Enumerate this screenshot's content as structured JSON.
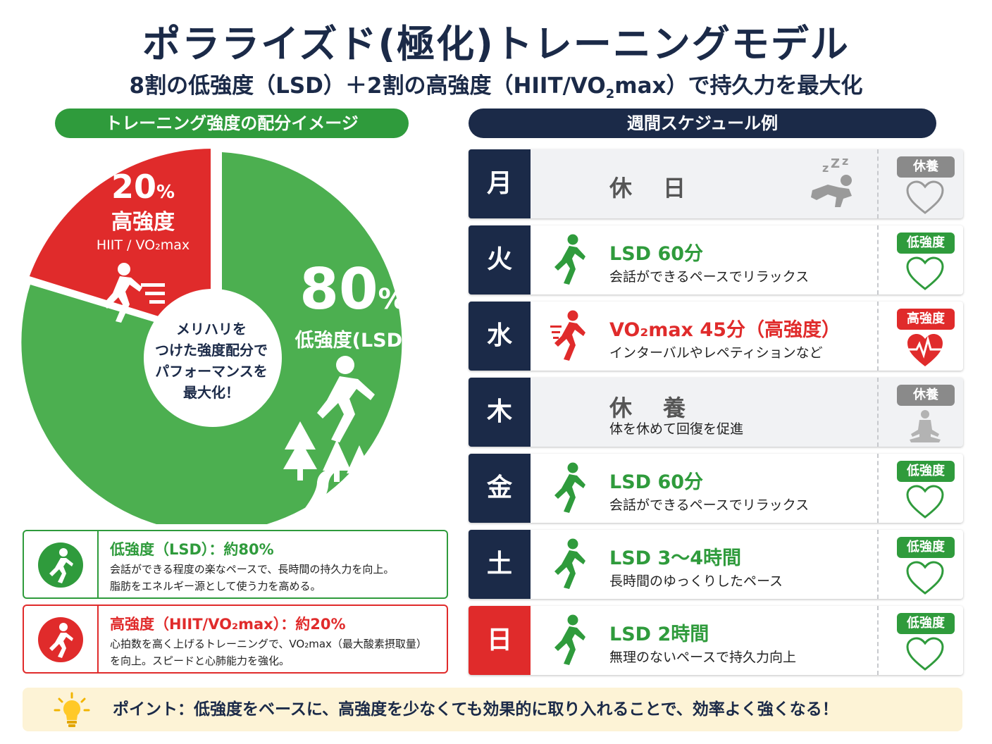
{
  "header": {
    "title": "ポラライズド(極化)トレーニングモデル",
    "subtitle_pre": "8割の低強度（LSD）＋2割の高強度（HIIT/VO",
    "subtitle_sub": "2",
    "subtitle_post": "max）で持久力を最大化"
  },
  "pie_section": {
    "heading": "トレーニング強度の配分イメージ",
    "high": {
      "percent_num": "20",
      "percent_sign": "%",
      "label": "高強度",
      "detail": "HIIT / VO₂max",
      "value": 20,
      "color": "#e02b2b"
    },
    "low": {
      "percent_num": "80",
      "percent_sign": "%",
      "label": "低強度(LSD)",
      "value": 80,
      "color": "#4caf50"
    },
    "center": [
      "メリハリを",
      "つけた強度配分で",
      "パフォーマンスを",
      "最大化！"
    ]
  },
  "legend": [
    {
      "title": "低強度（LSD）：約80%",
      "lines": [
        "会話ができる程度の楽なペースで、長時間の持久力を向上。",
        "脂肪をエネルギー源として使う力を高める。"
      ]
    },
    {
      "title": "高強度（HIIT/VO₂max）：約20%",
      "lines": [
        "心拍数を高く上げるトレーニングで、VO₂max（最大酸素摂取量）",
        "を向上。スピードと心肺能力を強化。"
      ]
    }
  ],
  "schedule": {
    "heading": "週間スケジュール例",
    "rows": [
      {
        "day": "月",
        "main": "休　日",
        "sub": "",
        "badge": "休養",
        "type": "rest"
      },
      {
        "day": "火",
        "main": "LSD 60分",
        "sub": "会話ができるペースでリラックス",
        "badge": "低強度",
        "type": "low"
      },
      {
        "day": "水",
        "main": "VO₂max 45分（高強度）",
        "sub": "インターバルやレペティションなど",
        "badge": "高強度",
        "type": "high"
      },
      {
        "day": "木",
        "main": "休　養",
        "sub": "体を休めて回復を促進",
        "badge": "休養",
        "type": "rest2"
      },
      {
        "day": "金",
        "main": "LSD 60分",
        "sub": "会話ができるペースでリラックス",
        "badge": "低強度",
        "type": "low"
      },
      {
        "day": "土",
        "main": "LSD 3〜4時間",
        "sub": "長時間のゆっくりしたペース",
        "badge": "低強度",
        "type": "low"
      },
      {
        "day": "日",
        "main": "LSD 2時間",
        "sub": "無理のないペースで持久力向上",
        "badge": "低強度",
        "type": "low",
        "sunday": true
      }
    ]
  },
  "point": {
    "text": "ポイント：低強度をベースに、高強度を少なくても効果的に取り入れることで、効率よく強くなる！"
  },
  "colors": {
    "navy": "#1b2a48",
    "green": "#2f9b3c",
    "pie_green": "#4caf50",
    "red": "#e02b2b",
    "gray": "#8a8a8a"
  },
  "icons": [
    "runner-icon",
    "heart-icon",
    "heartbeat-icon",
    "sleeping-icon",
    "meditation-icon",
    "tree-icon",
    "lightbulb-icon"
  ]
}
